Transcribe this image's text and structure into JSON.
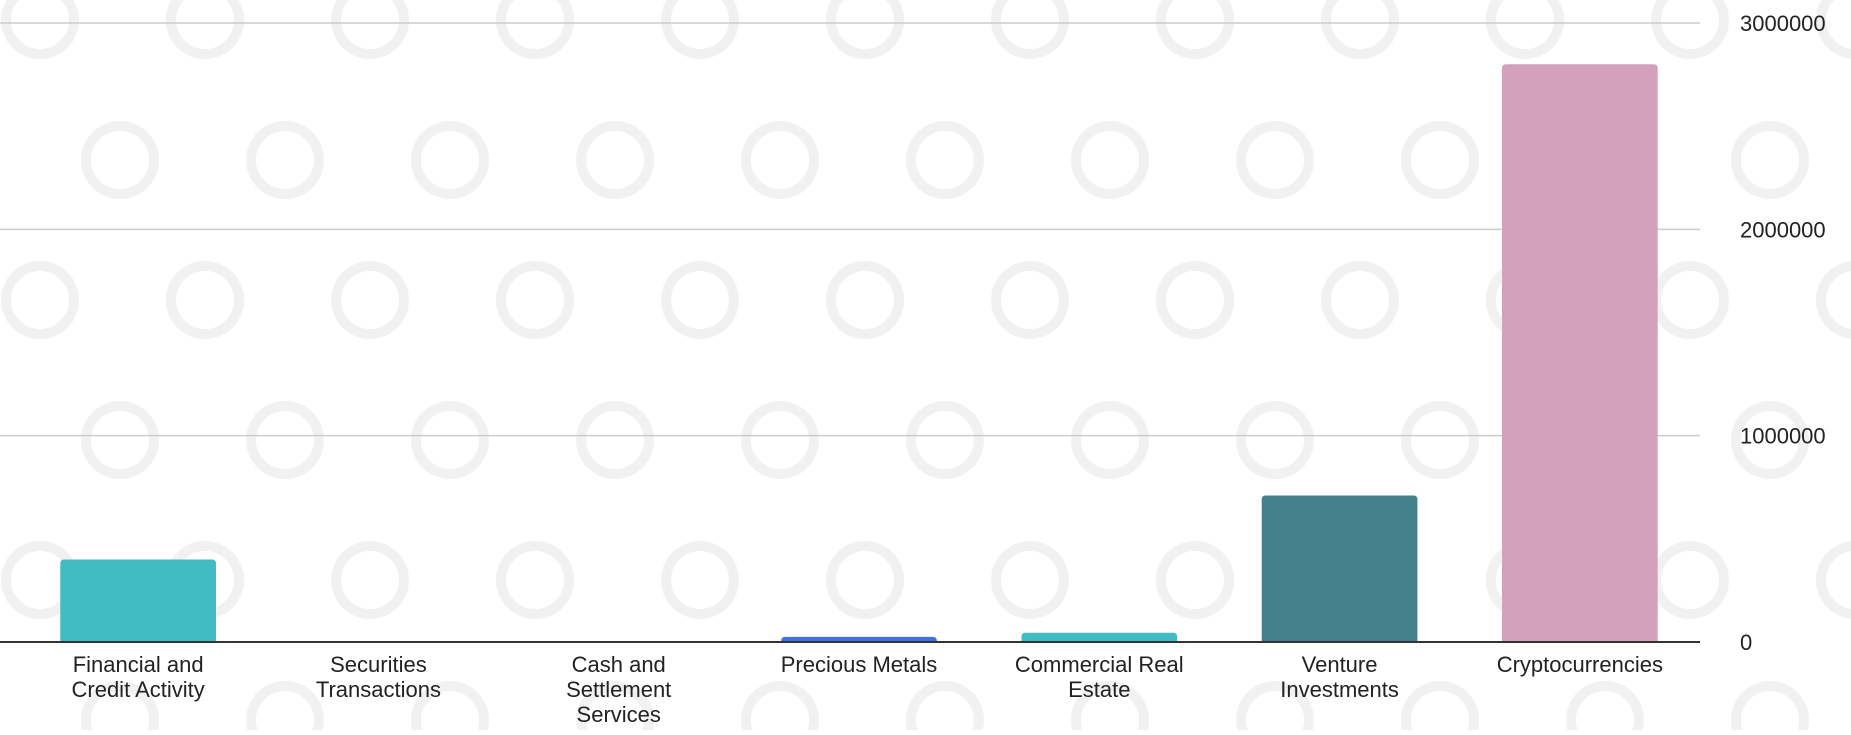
{
  "chart_data": {
    "type": "bar",
    "title": "",
    "xlabel": "",
    "ylabel": "",
    "categories": [
      [
        "Financial and",
        "Credit Activity"
      ],
      [
        "Securities",
        "Transactions"
      ],
      [
        "Cash and",
        "Settlement",
        "Services"
      ],
      [
        "Precious Metals"
      ],
      [
        "Commercial Real",
        "Estate"
      ],
      [
        "Venture",
        "Investments"
      ],
      [
        "Cryptocurrencies"
      ]
    ],
    "values": [
      400000,
      0,
      0,
      25000,
      45000,
      710000,
      2800000
    ],
    "colors": [
      "#41bcc4",
      "#41bcc4",
      "#41bcc4",
      "#3f73e3",
      "#41bcc4",
      "#447f8c",
      "#d4a1bc"
    ],
    "ylim": [
      0,
      3000000
    ],
    "yticks": [
      "0",
      "1000000",
      "2000000",
      "3000000"
    ],
    "y_axis_side": "right",
    "grid": true,
    "legend": "none"
  }
}
